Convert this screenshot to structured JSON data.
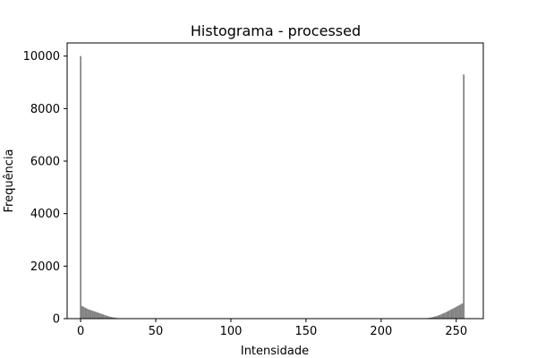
{
  "chart_data": {
    "type": "bar",
    "title": "Histograma - processed",
    "xlabel": "Intensidade",
    "ylabel": "Frequência",
    "xlim": [
      -9,
      268
    ],
    "ylim": [
      0,
      10500
    ],
    "xticks": [
      0,
      50,
      100,
      150,
      200,
      250
    ],
    "yticks": [
      0,
      2000,
      4000,
      6000,
      8000,
      10000
    ],
    "bar_color": "#808080",
    "grid": false,
    "series": [
      {
        "x": [
          0,
          1,
          2,
          3,
          4,
          5,
          6,
          7,
          8,
          9,
          10,
          11,
          12,
          13,
          14,
          15,
          16,
          17,
          18,
          19,
          20,
          21,
          22,
          23,
          24,
          25,
          26,
          27,
          28,
          29,
          30,
          230,
          231,
          232,
          233,
          234,
          235,
          236,
          237,
          238,
          239,
          240,
          241,
          242,
          243,
          244,
          245,
          246,
          247,
          248,
          249,
          250,
          251,
          252,
          253,
          254,
          255
        ],
        "values": [
          10000,
          480,
          450,
          420,
          390,
          360,
          340,
          320,
          300,
          280,
          260,
          240,
          220,
          200,
          180,
          160,
          140,
          120,
          100,
          85,
          70,
          55,
          45,
          35,
          25,
          18,
          12,
          8,
          5,
          3,
          2,
          10,
          20,
          30,
          40,
          55,
          70,
          85,
          100,
          120,
          140,
          165,
          190,
          215,
          240,
          270,
          300,
          330,
          360,
          390,
          420,
          450,
          480,
          510,
          540,
          580,
          9300
        ]
      }
    ]
  }
}
